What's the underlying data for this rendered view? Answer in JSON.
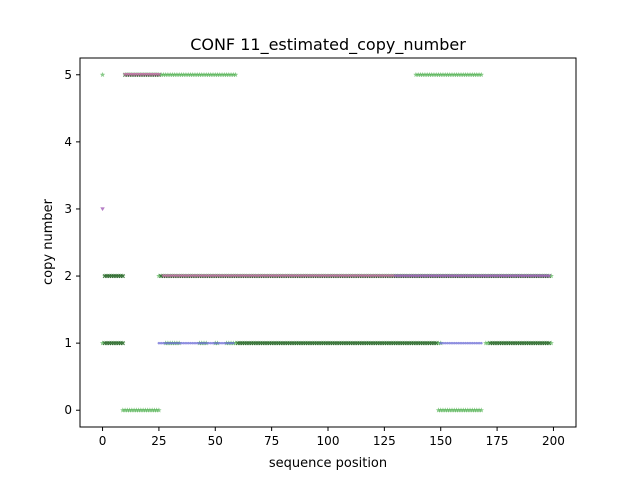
{
  "chart_data": {
    "type": "scatter",
    "title": "CONF 11_estimated_copy_number",
    "xlabel": "sequence position",
    "ylabel": "copy number",
    "xlim": [
      -10,
      210
    ],
    "ylim": [
      -0.25,
      5.25
    ],
    "xticks": [
      0,
      25,
      50,
      75,
      100,
      125,
      150,
      175,
      200
    ],
    "yticks": [
      0,
      1,
      2,
      3,
      4,
      5
    ],
    "grid": false,
    "legend": "none",
    "series": [
      {
        "name": "green",
        "color": "#2ca02c",
        "marker": "star",
        "segments": [
          {
            "y": 5,
            "from": 0,
            "to": 0
          },
          {
            "y": 5,
            "from": 10,
            "to": 59
          },
          {
            "y": 5,
            "from": 139,
            "to": 168
          },
          {
            "y": 2,
            "from": 1,
            "to": 9
          },
          {
            "y": 2,
            "from": 25,
            "to": 199
          },
          {
            "y": 1,
            "from": 0,
            "to": 9
          },
          {
            "y": 1,
            "from": 28,
            "to": 34
          },
          {
            "y": 1,
            "from": 43,
            "to": 46
          },
          {
            "y": 1,
            "from": 50,
            "to": 51
          },
          {
            "y": 1,
            "from": 55,
            "to": 150
          },
          {
            "y": 1,
            "from": 170,
            "to": 199
          },
          {
            "y": 0,
            "from": 9,
            "to": 25
          },
          {
            "y": 0,
            "from": 149,
            "to": 168
          }
        ]
      },
      {
        "name": "dark",
        "color": "#2a5a2a",
        "marker": "x",
        "segments": [
          {
            "y": 5,
            "from": 10,
            "to": 25
          },
          {
            "y": 2,
            "from": 1,
            "to": 9
          },
          {
            "y": 2,
            "from": 26,
            "to": 198
          },
          {
            "y": 1,
            "from": 1,
            "to": 9
          },
          {
            "y": 1,
            "from": 60,
            "to": 148
          },
          {
            "y": 1,
            "from": 172,
            "to": 198
          }
        ]
      },
      {
        "name": "pink",
        "color": "#e377c2",
        "marker": "triangle",
        "segments": [
          {
            "y": 3,
            "from": 0,
            "to": 0
          },
          {
            "y": 5,
            "from": 10,
            "to": 25
          },
          {
            "y": 2,
            "from": 27,
            "to": 198
          }
        ]
      },
      {
        "name": "purple",
        "color": "#9467bd",
        "marker": "triangle",
        "segments": [
          {
            "y": 3,
            "from": 0,
            "to": 0
          },
          {
            "y": 2,
            "from": 130,
            "to": 198
          }
        ]
      },
      {
        "name": "blue",
        "color": "#6b6bd6",
        "marker": "dot",
        "segments": [
          {
            "y": 1,
            "from": 25,
            "to": 58
          },
          {
            "y": 1,
            "from": 150,
            "to": 168
          }
        ]
      }
    ]
  }
}
